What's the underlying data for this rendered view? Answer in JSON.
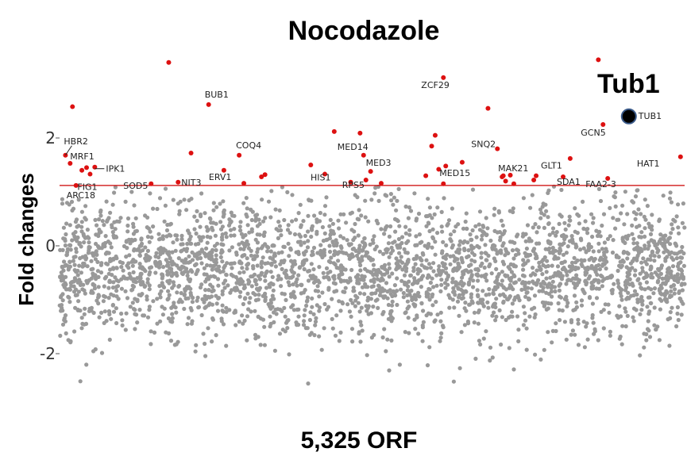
{
  "chart_data": {
    "type": "scatter",
    "title": "Nocodazole",
    "xlabel": "5,325 ORF",
    "ylabel": "Fold changes",
    "highlight_label": "Tub1",
    "n_points": 5325,
    "xlim": [
      0,
      5325
    ],
    "ylim": [
      -3.6,
      3.6
    ],
    "yticks": [
      -2,
      0,
      2
    ],
    "ytick_labels": [
      "-2",
      "0",
      "2"
    ],
    "threshold": 1.12,
    "grid": false,
    "legend": "none",
    "colors": {
      "background_points": "#999999",
      "hit_points": "#dd1111",
      "threshold_line": "#cc0000",
      "highlight": "#000000",
      "highlight_edge": "#3a5a8a"
    },
    "labeled_hits": [
      {
        "gene": "HBR2",
        "x": 50,
        "y": 1.68
      },
      {
        "gene": "MRF1",
        "x": 90,
        "y": 1.53
      },
      {
        "gene": "IPK1",
        "x": 300,
        "y": 1.46
      },
      {
        "gene": "FIG1",
        "x": 260,
        "y": 1.33
      },
      {
        "gene": "ARC18",
        "x": 140,
        "y": 1.12
      },
      {
        "gene": "SOD5",
        "x": 780,
        "y": 1.15
      },
      {
        "gene": "NIT3",
        "x": 1010,
        "y": 1.18
      },
      {
        "gene": "BUB1",
        "x": 1270,
        "y": 2.62
      },
      {
        "gene": "ERV1",
        "x": 1400,
        "y": 1.4
      },
      {
        "gene": "COQ4",
        "x": 1530,
        "y": 1.68
      },
      {
        "gene": "HIS1",
        "x": 2260,
        "y": 1.33
      },
      {
        "gene": "MED14",
        "x": 2590,
        "y": 1.68
      },
      {
        "gene": "MED3",
        "x": 2650,
        "y": 1.38
      },
      {
        "gene": "RPS5",
        "x": 2610,
        "y": 1.22
      },
      {
        "gene": "ZCF29",
        "x": 3270,
        "y": 3.12
      },
      {
        "gene": "MED15",
        "x": 3270,
        "y": 1.15
      },
      {
        "gene": "SNQ2",
        "x": 3730,
        "y": 1.8
      },
      {
        "gene": "MAK21",
        "x": 3770,
        "y": 1.28
      },
      {
        "gene": "GLT1",
        "x": 4060,
        "y": 1.3
      },
      {
        "gene": "GCN5",
        "x": 4630,
        "y": 2.25
      },
      {
        "gene": "TUB1",
        "x": 4850,
        "y": 2.4
      },
      {
        "gene": "SDA1",
        "x": 4290,
        "y": 1.28
      },
      {
        "gene": "FAA2-3",
        "x": 4670,
        "y": 1.25
      },
      {
        "gene": "HAT1",
        "x": 5290,
        "y": 1.65
      }
    ],
    "unlabeled_hits": [
      {
        "x": 930,
        "y": 3.4
      },
      {
        "x": 110,
        "y": 2.58
      },
      {
        "x": 4590,
        "y": 3.45
      },
      {
        "x": 3650,
        "y": 2.55
      },
      {
        "x": 2340,
        "y": 2.12
      },
      {
        "x": 2560,
        "y": 2.09
      },
      {
        "x": 3200,
        "y": 2.05
      },
      {
        "x": 3170,
        "y": 1.85
      },
      {
        "x": 1120,
        "y": 1.72
      },
      {
        "x": 4350,
        "y": 1.62
      },
      {
        "x": 2140,
        "y": 1.5
      },
      {
        "x": 3430,
        "y": 1.55
      },
      {
        "x": 3290,
        "y": 1.48
      },
      {
        "x": 3230,
        "y": 1.42
      },
      {
        "x": 1750,
        "y": 1.32
      },
      {
        "x": 1720,
        "y": 1.28
      },
      {
        "x": 3120,
        "y": 1.3
      },
      {
        "x": 3780,
        "y": 1.3
      },
      {
        "x": 3840,
        "y": 1.31
      },
      {
        "x": 3800,
        "y": 1.2
      },
      {
        "x": 3870,
        "y": 1.15
      },
      {
        "x": 4040,
        "y": 1.22
      },
      {
        "x": 2740,
        "y": 1.16
      },
      {
        "x": 2480,
        "y": 1.18
      },
      {
        "x": 1570,
        "y": 1.16
      },
      {
        "x": 190,
        "y": 1.4
      },
      {
        "x": 230,
        "y": 1.45
      }
    ]
  }
}
